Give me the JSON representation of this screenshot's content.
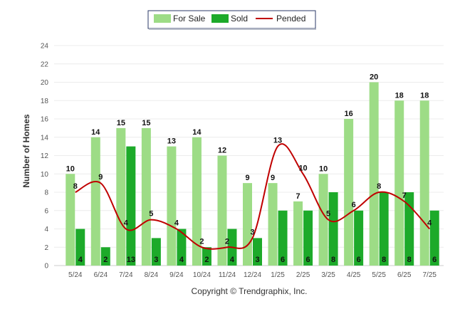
{
  "chart_data": {
    "type": "bar",
    "categories": [
      "5/24",
      "6/24",
      "7/24",
      "8/24",
      "9/24",
      "10/24",
      "11/24",
      "12/24",
      "1/25",
      "2/25",
      "3/25",
      "4/25",
      "5/25",
      "6/25",
      "7/25"
    ],
    "series": [
      {
        "name": "For Sale",
        "type": "bar",
        "color": "#9ddc86",
        "values": [
          10,
          14,
          15,
          15,
          13,
          14,
          12,
          9,
          9,
          7,
          10,
          16,
          20,
          18,
          18
        ]
      },
      {
        "name": "Sold",
        "type": "bar",
        "color": "#1daa2a",
        "values": [
          4,
          2,
          13,
          3,
          4,
          2,
          4,
          3,
          6,
          6,
          8,
          6,
          8,
          8,
          6
        ]
      },
      {
        "name": "Pended",
        "type": "line",
        "color": "#c00000",
        "values": [
          8,
          9,
          4,
          5,
          4,
          2,
          2,
          3,
          13,
          10,
          5,
          6,
          8,
          7,
          4
        ]
      }
    ],
    "ylabel": "Number of Homes",
    "ylim": [
      0,
      24
    ],
    "yticks": [
      0,
      2,
      4,
      6,
      8,
      10,
      12,
      14,
      16,
      18,
      20,
      22,
      24
    ],
    "grid": true,
    "legend_position": "top-center",
    "credit": "Copyright © Trendgraphix, Inc."
  }
}
